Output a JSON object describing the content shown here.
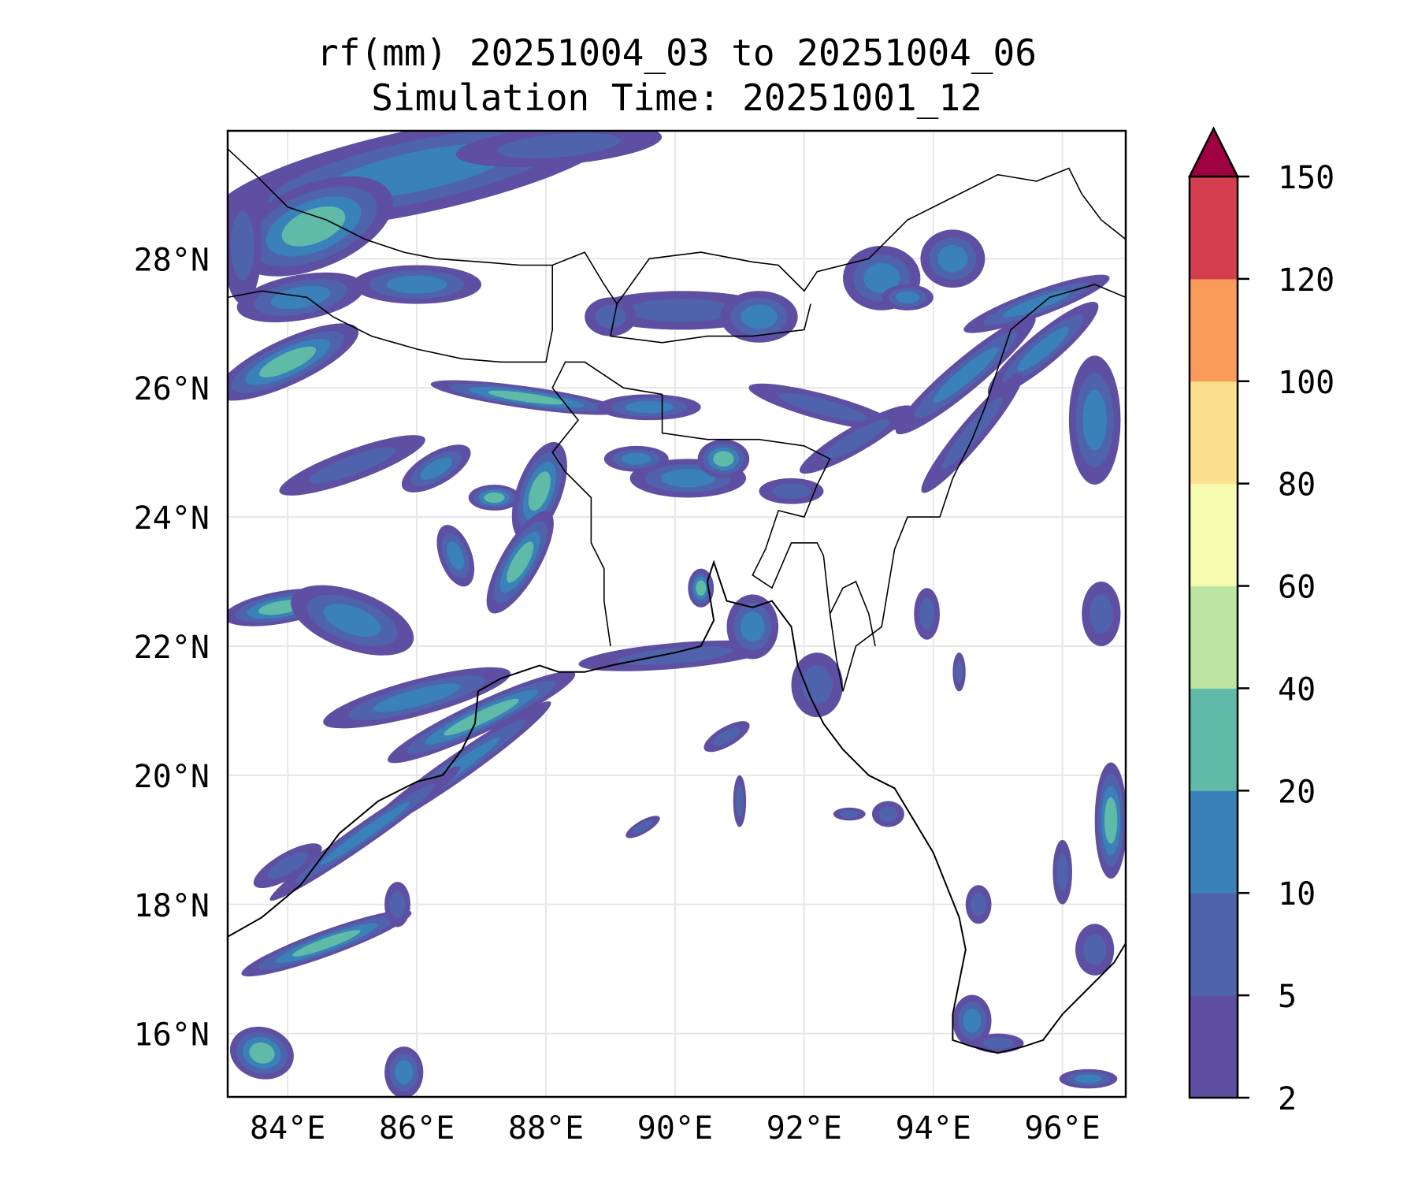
{
  "chart_data": {
    "type": "heatmap",
    "subtype": "filled-contour-map",
    "title": [
      "rf(mm) 20251004_03 to 20251004_06",
      "Simulation Time: 20251001_12"
    ],
    "variable": "rf(mm)",
    "xlim": [
      83.07,
      96.98
    ],
    "ylim": [
      15.02,
      29.98
    ],
    "x_ticks": [
      84,
      86,
      88,
      90,
      92,
      94,
      96
    ],
    "x_tick_labels": [
      "84°E",
      "86°E",
      "88°E",
      "90°E",
      "92°E",
      "94°E",
      "96°E"
    ],
    "y_ticks": [
      16,
      18,
      20,
      22,
      24,
      26,
      28
    ],
    "y_tick_labels": [
      "16°N",
      "18°N",
      "20°N",
      "22°N",
      "24°N",
      "26°N",
      "28°N"
    ],
    "grid": true,
    "colorbar": {
      "levels": [
        2,
        5,
        10,
        20,
        40,
        60,
        80,
        100,
        120,
        150
      ],
      "tick_labels": [
        "2",
        "5",
        "10",
        "20",
        "40",
        "60",
        "80",
        "100",
        "120",
        "150"
      ],
      "colors": [
        "#5e4fa2",
        "#4e63ab",
        "#3a80b9",
        "#5fbaa7",
        "#bde4a0",
        "#f4fab0",
        "#fce08d",
        "#f99c5a",
        "#d53e4f"
      ],
      "extend_color": "#9e0142",
      "extend": "max",
      "placement": "right"
    },
    "rain_cells_columns": [
      "lon",
      "lat",
      "rx_deg",
      "ry_deg",
      "rotation_deg",
      "max_level_index"
    ],
    "rain_cells": [
      [
        86.0,
        29.35,
        3.2,
        0.65,
        -12,
        2
      ],
      [
        88.2,
        29.75,
        1.6,
        0.3,
        -5,
        1
      ],
      [
        84.4,
        28.5,
        1.3,
        0.65,
        -22,
        3
      ],
      [
        83.3,
        28.2,
        0.3,
        0.9,
        0,
        1
      ],
      [
        84.2,
        27.4,
        1.0,
        0.35,
        -10,
        2
      ],
      [
        86.0,
        27.6,
        1.0,
        0.3,
        0,
        2
      ],
      [
        84.0,
        26.4,
        1.2,
        0.35,
        -25,
        3
      ],
      [
        87.7,
        25.85,
        1.5,
        0.17,
        8,
        3
      ],
      [
        89.6,
        25.7,
        0.8,
        0.2,
        0,
        2
      ],
      [
        85.0,
        24.8,
        1.2,
        0.24,
        -20,
        1
      ],
      [
        86.3,
        24.75,
        0.6,
        0.25,
        -30,
        2
      ],
      [
        87.9,
        24.4,
        0.35,
        0.8,
        20,
        3
      ],
      [
        87.6,
        23.3,
        0.3,
        0.9,
        30,
        3
      ],
      [
        87.2,
        24.3,
        0.4,
        0.2,
        0,
        3
      ],
      [
        86.6,
        23.4,
        0.25,
        0.5,
        -20,
        2
      ],
      [
        83.9,
        22.6,
        0.9,
        0.25,
        -10,
        3
      ],
      [
        85.0,
        22.4,
        1.0,
        0.45,
        20,
        2
      ],
      [
        86.0,
        21.2,
        1.5,
        0.28,
        -15,
        2
      ],
      [
        87.0,
        20.9,
        1.6,
        0.24,
        -25,
        3
      ],
      [
        86.6,
        20.1,
        1.8,
        0.2,
        -35,
        2
      ],
      [
        85.2,
        19.1,
        1.8,
        0.17,
        -35,
        2
      ],
      [
        84.6,
        17.4,
        1.4,
        0.2,
        -20,
        3
      ],
      [
        83.6,
        15.7,
        0.5,
        0.4,
        15,
        3
      ],
      [
        85.8,
        15.4,
        0.3,
        0.4,
        0,
        2
      ],
      [
        84.0,
        18.6,
        0.6,
        0.2,
        -30,
        1
      ],
      [
        85.7,
        18.0,
        0.2,
        0.35,
        0,
        1
      ],
      [
        90.2,
        24.6,
        0.9,
        0.3,
        0,
        2
      ],
      [
        90.75,
        24.9,
        0.4,
        0.3,
        0,
        3
      ],
      [
        89.4,
        24.9,
        0.5,
        0.2,
        0,
        2
      ],
      [
        90.0,
        21.85,
        1.5,
        0.2,
        -5,
        1
      ],
      [
        91.2,
        22.3,
        0.4,
        0.5,
        0,
        2
      ],
      [
        90.4,
        22.9,
        0.2,
        0.3,
        0,
        3
      ],
      [
        90.1,
        27.2,
        1.4,
        0.3,
        0,
        1
      ],
      [
        91.3,
        27.1,
        0.6,
        0.4,
        0,
        2
      ],
      [
        89.0,
        27.1,
        0.4,
        0.3,
        0,
        1
      ],
      [
        92.3,
        25.7,
        1.2,
        0.2,
        15,
        1
      ],
      [
        92.8,
        25.2,
        1.0,
        0.2,
        -30,
        1
      ],
      [
        91.8,
        24.4,
        0.5,
        0.2,
        0,
        1
      ],
      [
        93.2,
        27.7,
        0.6,
        0.5,
        0,
        2
      ],
      [
        94.3,
        28.0,
        0.5,
        0.45,
        0,
        2
      ],
      [
        93.6,
        27.4,
        0.4,
        0.2,
        0,
        2
      ],
      [
        94.5,
        26.2,
        1.4,
        0.25,
        -40,
        2
      ],
      [
        95.7,
        26.6,
        1.1,
        0.25,
        -40,
        2
      ],
      [
        94.6,
        25.3,
        1.2,
        0.2,
        -50,
        1
      ],
      [
        95.6,
        27.3,
        1.2,
        0.2,
        -20,
        2
      ],
      [
        96.5,
        25.5,
        0.4,
        1.0,
        0,
        2
      ],
      [
        96.6,
        22.5,
        0.3,
        0.5,
        0,
        1
      ],
      [
        96.75,
        19.3,
        0.25,
        0.9,
        0,
        3
      ],
      [
        96.0,
        18.5,
        0.15,
        0.5,
        0,
        1
      ],
      [
        94.7,
        18.0,
        0.2,
        0.3,
        0,
        1
      ],
      [
        94.6,
        16.2,
        0.3,
        0.4,
        0,
        2
      ],
      [
        95.0,
        15.85,
        0.4,
        0.15,
        0,
        1
      ],
      [
        96.5,
        17.3,
        0.3,
        0.4,
        0,
        1
      ],
      [
        96.4,
        15.3,
        0.45,
        0.15,
        0,
        2
      ],
      [
        89.5,
        19.2,
        0.3,
        0.1,
        -30,
        1
      ],
      [
        91.0,
        19.6,
        0.1,
        0.4,
        0,
        1
      ],
      [
        92.7,
        19.4,
        0.25,
        0.1,
        0,
        1
      ],
      [
        90.8,
        20.6,
        0.4,
        0.15,
        -30,
        1
      ],
      [
        92.2,
        21.4,
        0.4,
        0.5,
        0,
        1
      ],
      [
        93.3,
        19.4,
        0.25,
        0.2,
        0,
        1
      ],
      [
        93.9,
        22.5,
        0.2,
        0.4,
        0,
        1
      ],
      [
        94.4,
        21.6,
        0.1,
        0.3,
        0,
        1
      ]
    ],
    "coastline": [
      [
        83.07,
        17.5
      ],
      [
        83.6,
        17.8
      ],
      [
        84.2,
        18.3
      ],
      [
        84.8,
        19.1
      ],
      [
        85.4,
        19.6
      ],
      [
        86.0,
        19.9
      ],
      [
        86.4,
        20.0
      ],
      [
        86.7,
        20.4
      ],
      [
        86.9,
        20.8
      ],
      [
        86.95,
        21.3
      ],
      [
        87.3,
        21.5
      ],
      [
        87.9,
        21.7
      ],
      [
        88.2,
        21.6
      ],
      [
        88.6,
        21.6
      ],
      [
        89.0,
        21.7
      ],
      [
        89.5,
        21.8
      ],
      [
        90.0,
        21.9
      ],
      [
        90.4,
        22.0
      ],
      [
        90.6,
        22.4
      ],
      [
        90.5,
        23.0
      ],
      [
        90.6,
        23.3
      ],
      [
        90.8,
        22.7
      ],
      [
        91.2,
        22.6
      ],
      [
        91.5,
        22.7
      ],
      [
        91.8,
        22.3
      ],
      [
        91.9,
        21.7
      ],
      [
        92.1,
        21.2
      ],
      [
        92.3,
        20.8
      ],
      [
        92.6,
        20.4
      ],
      [
        93.0,
        20.0
      ],
      [
        93.4,
        19.8
      ],
      [
        93.7,
        19.3
      ],
      [
        94.0,
        18.8
      ],
      [
        94.2,
        18.3
      ],
      [
        94.4,
        17.8
      ],
      [
        94.5,
        17.3
      ],
      [
        94.4,
        16.8
      ],
      [
        94.3,
        16.3
      ],
      [
        94.3,
        15.9
      ],
      [
        94.6,
        15.8
      ],
      [
        95.0,
        15.7
      ],
      [
        95.4,
        15.8
      ],
      [
        95.7,
        15.9
      ],
      [
        96.0,
        16.3
      ],
      [
        96.3,
        16.6
      ],
      [
        96.5,
        16.8
      ],
      [
        96.8,
        17.1
      ],
      [
        96.98,
        17.4
      ]
    ],
    "borders": [
      [
        [
          83.07,
          29.7
        ],
        [
          83.5,
          29.3
        ],
        [
          84.0,
          28.8
        ],
        [
          84.6,
          28.6
        ],
        [
          85.2,
          28.3
        ],
        [
          85.8,
          28.1
        ],
        [
          86.3,
          28.0
        ],
        [
          87.0,
          27.95
        ],
        [
          87.6,
          27.9
        ],
        [
          88.1,
          27.9
        ],
        [
          88.6,
          28.1
        ],
        [
          88.9,
          27.6
        ],
        [
          89.1,
          27.3
        ],
        [
          89.6,
          28.0
        ],
        [
          90.4,
          28.1
        ],
        [
          91.2,
          27.95
        ],
        [
          91.6,
          27.9
        ],
        [
          92.0,
          27.5
        ],
        [
          92.2,
          27.8
        ],
        [
          93.0,
          28.0
        ],
        [
          93.6,
          28.6
        ],
        [
          94.2,
          28.9
        ],
        [
          95.0,
          29.3
        ],
        [
          95.6,
          29.2
        ],
        [
          96.1,
          29.4
        ],
        [
          96.3,
          29.0
        ],
        [
          96.6,
          28.6
        ],
        [
          96.98,
          28.3
        ]
      ],
      [
        [
          83.07,
          27.4
        ],
        [
          83.6,
          27.5
        ],
        [
          84.3,
          27.4
        ],
        [
          84.7,
          27.1
        ],
        [
          85.3,
          26.8
        ],
        [
          86.0,
          26.6
        ],
        [
          86.7,
          26.45
        ],
        [
          87.3,
          26.4
        ],
        [
          88.0,
          26.4
        ],
        [
          88.1,
          26.9
        ],
        [
          88.1,
          27.9
        ]
      ],
      [
        [
          89.1,
          27.3
        ],
        [
          89.0,
          26.8
        ],
        [
          89.8,
          26.7
        ],
        [
          90.5,
          26.8
        ],
        [
          91.2,
          26.8
        ],
        [
          92.0,
          26.9
        ],
        [
          92.1,
          27.3
        ]
      ],
      [
        [
          88.1,
          26.0
        ],
        [
          88.3,
          26.4
        ],
        [
          88.6,
          26.4
        ],
        [
          88.9,
          26.2
        ],
        [
          89.2,
          26.0
        ],
        [
          89.8,
          25.9
        ],
        [
          89.8,
          25.3
        ],
        [
          90.5,
          25.2
        ],
        [
          91.3,
          25.2
        ],
        [
          92.0,
          25.1
        ],
        [
          92.4,
          24.9
        ],
        [
          92.2,
          24.5
        ],
        [
          92.0,
          24.0
        ],
        [
          91.6,
          24.1
        ],
        [
          91.4,
          23.5
        ],
        [
          91.2,
          23.1
        ],
        [
          91.5,
          22.9
        ],
        [
          91.8,
          23.6
        ],
        [
          92.2,
          23.6
        ],
        [
          92.3,
          23.4
        ],
        [
          92.4,
          22.5
        ],
        [
          92.5,
          21.8
        ],
        [
          92.6,
          21.3
        ]
      ],
      [
        [
          88.1,
          26.0
        ],
        [
          88.5,
          25.5
        ],
        [
          88.1,
          25.0
        ],
        [
          88.3,
          24.7
        ],
        [
          88.7,
          24.3
        ],
        [
          88.7,
          23.6
        ],
        [
          88.9,
          23.2
        ],
        [
          88.9,
          22.7
        ],
        [
          89.0,
          22.0
        ]
      ],
      [
        [
          96.98,
          27.4
        ],
        [
          96.5,
          27.6
        ],
        [
          95.8,
          27.4
        ],
        [
          95.2,
          26.9
        ],
        [
          95.0,
          26.3
        ],
        [
          94.8,
          25.7
        ],
        [
          94.6,
          25.2
        ],
        [
          94.3,
          24.6
        ],
        [
          94.1,
          24.0
        ],
        [
          93.6,
          24.0
        ],
        [
          93.4,
          23.5
        ],
        [
          93.3,
          22.9
        ],
        [
          93.2,
          22.3
        ],
        [
          92.8,
          22.0
        ],
        [
          92.6,
          21.3
        ]
      ],
      [
        [
          92.4,
          22.5
        ],
        [
          92.6,
          22.9
        ],
        [
          92.8,
          23.0
        ],
        [
          93.0,
          22.5
        ],
        [
          93.1,
          22.0
        ]
      ]
    ]
  }
}
